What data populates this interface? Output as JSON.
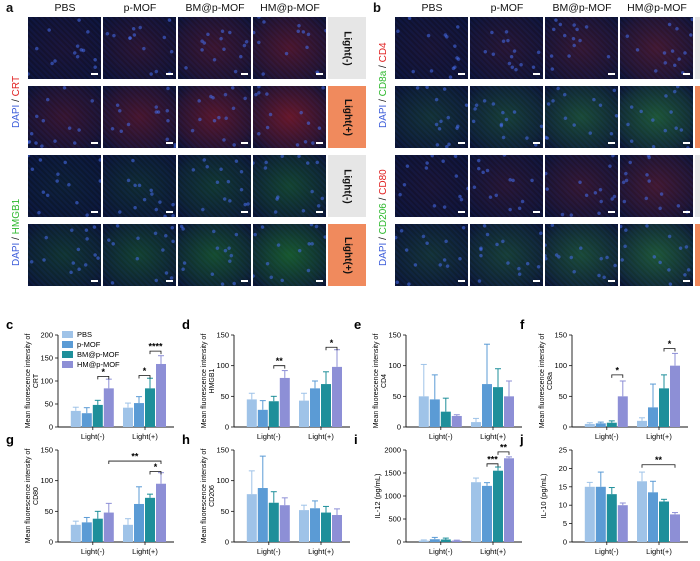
{
  "panels": {
    "a": {
      "label": "a",
      "columns": [
        "PBS",
        "p-MOF",
        "BM@p-MOF",
        "HM@p-MOF"
      ],
      "rows": [
        {
          "stain": [
            "DAPI",
            " / ",
            "CRT"
          ],
          "light": "Light(-)"
        },
        {
          "stain": [
            "DAPI",
            " / ",
            "CRT"
          ],
          "light": "Light(+)"
        },
        {
          "stain": [
            "DAPI",
            " / ",
            "HMGB1"
          ],
          "light": "Light(-)"
        },
        {
          "stain": [
            "DAPI",
            " / ",
            "HMGB1"
          ],
          "light": "Light(+)"
        }
      ]
    },
    "b": {
      "label": "b",
      "columns": [
        "PBS",
        "p-MOF",
        "BM@p-MOF",
        "HM@p-MOF"
      ],
      "rows": [
        {
          "stain": [
            "DAPI",
            " / ",
            "CD8a",
            " / ",
            "CD4"
          ],
          "light": "Light(-)"
        },
        {
          "stain": [
            "DAPI",
            " / ",
            "CD8a",
            " / ",
            "CD4"
          ],
          "light": "Light(+)"
        },
        {
          "stain": [
            "DAPI",
            " / ",
            "CD206",
            " / ",
            "CD80"
          ],
          "light": "Light(-)"
        },
        {
          "stain": [
            "DAPI",
            " / ",
            "CD206",
            " / ",
            "CD80"
          ],
          "light": "Light(+)"
        }
      ]
    }
  },
  "colors": {
    "dapi": "#3a5bd9",
    "crt": "#e02020",
    "green": "#2db82d",
    "light_off_tab": "#e6e6e6",
    "light_on_tab": "#f08a5d",
    "PBS": "#9fc3e8",
    "p-MOF": "#5b9bd5",
    "BM@p-MOF": "#1e8f9a",
    "HM@p-MOF": "#8d8fd6"
  },
  "legend": [
    "PBS",
    "p-MOF",
    "BM@p-MOF",
    "HM@p-MOF"
  ],
  "chart_data": [
    {
      "panel": "c",
      "type": "bar",
      "ylabel": "Mean fluorescence intensity of CRT",
      "categories": [
        "Light(-)",
        "Light(+)"
      ],
      "ylim": [
        0,
        200
      ],
      "yticks": [
        0,
        50,
        100,
        150,
        200
      ],
      "series": [
        {
          "name": "PBS",
          "values": [
            35,
            42
          ],
          "err": [
            8,
            10
          ]
        },
        {
          "name": "p-MOF",
          "values": [
            30,
            52
          ],
          "err": [
            12,
            14
          ]
        },
        {
          "name": "BM@p-MOF",
          "values": [
            48,
            84
          ],
          "err": [
            10,
            22
          ]
        },
        {
          "name": "HM@p-MOF",
          "values": [
            84,
            137
          ],
          "err": [
            20,
            18
          ]
        }
      ],
      "sig": [
        {
          "g": 0,
          "a": 2,
          "b": 3,
          "y": 110,
          "t": "*"
        },
        {
          "g": 1,
          "a": 1,
          "b": 2,
          "y": 112,
          "t": "*"
        },
        {
          "g": 1,
          "a": 2,
          "b": 3,
          "y": 165,
          "t": "****"
        }
      ]
    },
    {
      "panel": "d",
      "type": "bar",
      "ylabel": "Mean fluorescence intensity of HMGB1",
      "categories": [
        "Light(-)",
        "Light(+)"
      ],
      "ylim": [
        0,
        150
      ],
      "yticks": [
        0,
        50,
        100,
        150
      ],
      "series": [
        {
          "name": "PBS",
          "values": [
            45,
            43
          ],
          "err": [
            10,
            12
          ]
        },
        {
          "name": "p-MOF",
          "values": [
            28,
            63
          ],
          "err": [
            15,
            12
          ]
        },
        {
          "name": "BM@p-MOF",
          "values": [
            42,
            70
          ],
          "err": [
            8,
            20
          ]
        },
        {
          "name": "HM@p-MOF",
          "values": [
            80,
            98
          ],
          "err": [
            12,
            28
          ]
        }
      ],
      "sig": [
        {
          "g": 0,
          "a": 2,
          "b": 3,
          "y": 100,
          "t": "**"
        },
        {
          "g": 1,
          "a": 2,
          "b": 3,
          "y": 130,
          "t": "*"
        }
      ]
    },
    {
      "panel": "e",
      "type": "bar",
      "ylabel": "Mean fluorescence intensity of CD4",
      "categories": [
        "Light(-)",
        "Light(+)"
      ],
      "ylim": [
        0,
        150
      ],
      "yticks": [
        0,
        50,
        100,
        150
      ],
      "series": [
        {
          "name": "PBS",
          "values": [
            50,
            8
          ],
          "err": [
            52,
            6
          ]
        },
        {
          "name": "p-MOF",
          "values": [
            45,
            70
          ],
          "err": [
            40,
            65
          ]
        },
        {
          "name": "BM@p-MOF",
          "values": [
            25,
            65
          ],
          "err": [
            22,
            30
          ]
        },
        {
          "name": "HM@p-MOF",
          "values": [
            18,
            50
          ],
          "err": [
            2,
            25
          ]
        }
      ],
      "sig": []
    },
    {
      "panel": "f",
      "type": "bar",
      "ylabel": "Mean fluorescence intensity of CD8a",
      "categories": [
        "Light(-)",
        "Light(+)"
      ],
      "ylim": [
        0,
        150
      ],
      "yticks": [
        0,
        50,
        100,
        150
      ],
      "series": [
        {
          "name": "PBS",
          "values": [
            5,
            10
          ],
          "err": [
            2,
            5
          ]
        },
        {
          "name": "p-MOF",
          "values": [
            6,
            32
          ],
          "err": [
            2,
            38
          ]
        },
        {
          "name": "BM@p-MOF",
          "values": [
            7,
            63
          ],
          "err": [
            3,
            22
          ]
        },
        {
          "name": "HM@p-MOF",
          "values": [
            50,
            100
          ],
          "err": [
            25,
            20
          ]
        }
      ],
      "sig": [
        {
          "g": 0,
          "a": 2,
          "b": 3,
          "y": 85,
          "t": "*"
        },
        {
          "g": 1,
          "a": 2,
          "b": 3,
          "y": 128,
          "t": "*"
        }
      ]
    },
    {
      "panel": "g",
      "type": "bar",
      "ylabel": "Mean fluorescence intensity of CD80",
      "categories": [
        "Light(-)",
        "Light(+)"
      ],
      "ylim": [
        0,
        150
      ],
      "yticks": [
        0,
        50,
        100,
        150
      ],
      "series": [
        {
          "name": "PBS",
          "values": [
            28,
            28
          ],
          "err": [
            6,
            10
          ]
        },
        {
          "name": "p-MOF",
          "values": [
            32,
            62
          ],
          "err": [
            8,
            28
          ]
        },
        {
          "name": "BM@p-MOF",
          "values": [
            38,
            72
          ],
          "err": [
            12,
            6
          ]
        },
        {
          "name": "HM@p-MOF",
          "values": [
            48,
            95
          ],
          "err": [
            15,
            18
          ]
        }
      ],
      "sig": [
        {
          "g": 1,
          "a": 2,
          "b": 3,
          "y": 115,
          "t": "*"
        }
      ],
      "long_sig": [
        {
          "from_g": 0,
          "from_s": 3,
          "to_g": 1,
          "to_s": 3,
          "y": 132,
          "t": "**"
        }
      ]
    },
    {
      "panel": "h",
      "type": "bar",
      "ylabel": "Mean fluorescence intensity of CD206",
      "categories": [
        "Light(-)",
        "Light(+)"
      ],
      "ylim": [
        0,
        150
      ],
      "yticks": [
        0,
        50,
        100,
        150
      ],
      "series": [
        {
          "name": "PBS",
          "values": [
            78,
            52
          ],
          "err": [
            38,
            8
          ]
        },
        {
          "name": "p-MOF",
          "values": [
            88,
            55
          ],
          "err": [
            52,
            12
          ]
        },
        {
          "name": "BM@p-MOF",
          "values": [
            64,
            48
          ],
          "err": [
            18,
            10
          ]
        },
        {
          "name": "HM@p-MOF",
          "values": [
            60,
            44
          ],
          "err": [
            12,
            10
          ]
        }
      ],
      "sig": []
    },
    {
      "panel": "i",
      "type": "bar",
      "ylabel": "IL-12 (pg/mL)",
      "categories": [
        "Light(-)",
        "Light(+)"
      ],
      "ylim": [
        0,
        2000
      ],
      "yticks": [
        0,
        500,
        1000,
        1500,
        2000
      ],
      "series": [
        {
          "name": "PBS",
          "values": [
            30,
            1300
          ],
          "err": [
            15,
            90
          ]
        },
        {
          "name": "p-MOF",
          "values": [
            60,
            1220
          ],
          "err": [
            40,
            70
          ]
        },
        {
          "name": "BM@p-MOF",
          "values": [
            55,
            1550
          ],
          "err": [
            30,
            80
          ]
        },
        {
          "name": "HM@p-MOF",
          "values": [
            30,
            1820
          ],
          "err": [
            10,
            30
          ]
        }
      ],
      "sig": [
        {
          "g": 1,
          "a": 1,
          "b": 2,
          "y": 1700,
          "t": "***"
        },
        {
          "g": 1,
          "a": 2,
          "b": 3,
          "y": 1960,
          "t": "**"
        }
      ]
    },
    {
      "panel": "j",
      "type": "bar",
      "ylabel": "IL-10 (pg/mL)",
      "categories": [
        "Light(-)",
        "Light(+)"
      ],
      "ylim": [
        0,
        25
      ],
      "yticks": [
        0,
        5,
        10,
        15,
        20,
        25
      ],
      "series": [
        {
          "name": "PBS",
          "values": [
            15,
            16.5
          ],
          "err": [
            1.2,
            2.5
          ]
        },
        {
          "name": "p-MOF",
          "values": [
            15,
            13.5
          ],
          "err": [
            4,
            3
          ]
        },
        {
          "name": "BM@p-MOF",
          "values": [
            13,
            11
          ],
          "err": [
            1.8,
            0.6
          ]
        },
        {
          "name": "HM@p-MOF",
          "values": [
            10,
            7.5
          ],
          "err": [
            0.6,
            0.5
          ]
        }
      ],
      "sig": [],
      "long_sig": [
        {
          "from_g": 1,
          "from_s": 0,
          "to_g": 1,
          "to_s": 3,
          "y": 21,
          "t": "**"
        }
      ]
    }
  ]
}
